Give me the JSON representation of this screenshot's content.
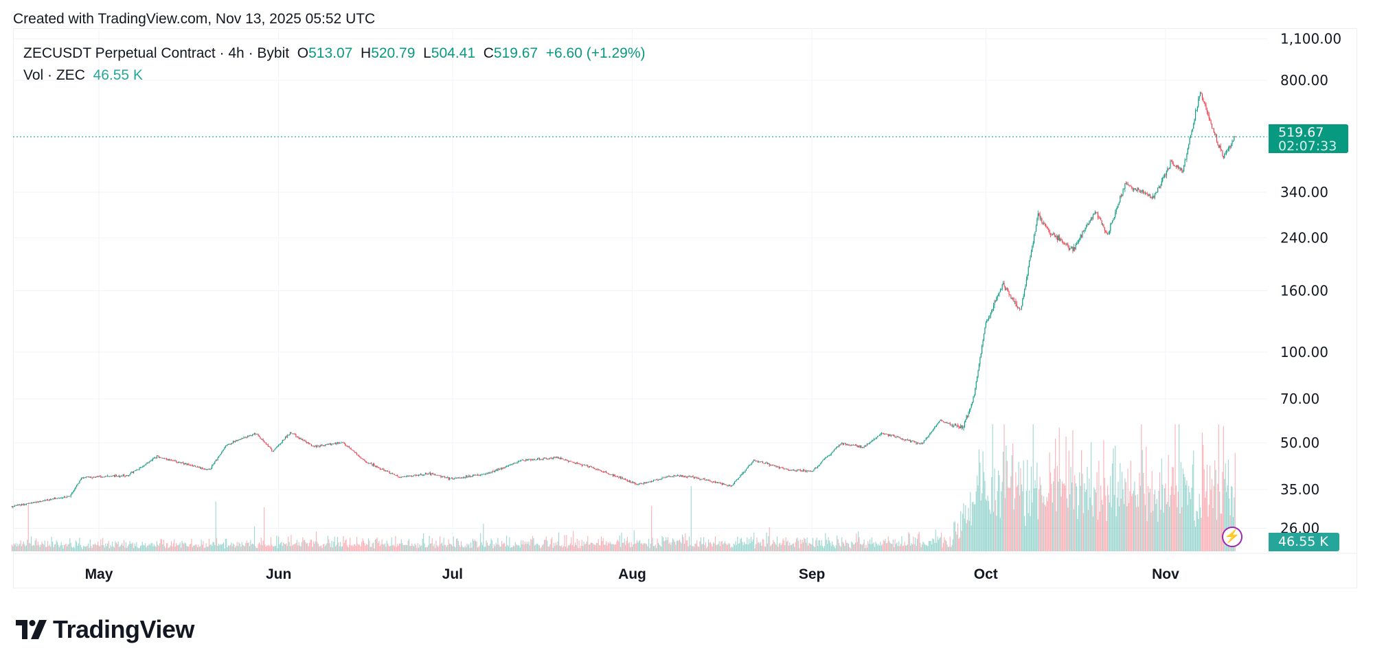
{
  "header": {
    "created": "Created with TradingView.com, Nov 13, 2025 05:52 UTC"
  },
  "legend": {
    "symbol": "ZECUSDT Perpetual Contract · 4h · Bybit",
    "o_label": "O",
    "o": "513.07",
    "h_label": "H",
    "h": "520.79",
    "l_label": "L",
    "l": "504.41",
    "c_label": "C",
    "c": "519.67",
    "change": "+6.60 (+1.29%)",
    "vol_label": "Vol · ZEC",
    "vol": "46.55 K"
  },
  "badges": {
    "last_price": "519.67",
    "countdown": "02:07:33",
    "volume": "46.55 K"
  },
  "logo": {
    "text": "TradingView"
  },
  "colors": {
    "up": "#089981",
    "down": "#f23645",
    "vol_up": "#26a69a",
    "vol_down": "#f7525f",
    "grid": "#f0f3fa",
    "alert": "#9c27b0"
  },
  "chart_data": {
    "type": "candlestick",
    "interval": "4h",
    "y_scale": "log",
    "grid": true,
    "ylim": [
      24,
      1150
    ],
    "y_ticks": [
      {
        "value": 1100,
        "label": "1,100.00"
      },
      {
        "value": 800,
        "label": "800.00"
      },
      {
        "value": 340,
        "label": "340.00"
      },
      {
        "value": 240,
        "label": "240.00"
      },
      {
        "value": 160,
        "label": "160.00"
      },
      {
        "value": 100,
        "label": "100.00"
      },
      {
        "value": 70,
        "label": "70.00"
      },
      {
        "value": 50,
        "label": "50.00"
      },
      {
        "value": 35,
        "label": "35.00"
      },
      {
        "value": 26,
        "label": "26.00"
      }
    ],
    "x_ticks": [
      {
        "date": "2025-05-01",
        "label": "May"
      },
      {
        "date": "2025-06-01",
        "label": "Jun"
      },
      {
        "date": "2025-07-01",
        "label": "Jul"
      },
      {
        "date": "2025-08-01",
        "label": "Aug"
      },
      {
        "date": "2025-09-01",
        "label": "Sep"
      },
      {
        "date": "2025-10-01",
        "label": "Oct"
      },
      {
        "date": "2025-11-01",
        "label": "Nov"
      }
    ],
    "last_price": 519.67,
    "price_path": [
      [
        "2025-04-16",
        30.8
      ],
      [
        "2025-04-26",
        33.2
      ],
      [
        "2025-04-28",
        38.4
      ],
      [
        "2025-05-06",
        38.9
      ],
      [
        "2025-05-11",
        45.0
      ],
      [
        "2025-05-20",
        40.6
      ],
      [
        "2025-05-23",
        49.2
      ],
      [
        "2025-05-28",
        53.8
      ],
      [
        "2025-05-31",
        46.9
      ],
      [
        "2025-06-03",
        54.0
      ],
      [
        "2025-06-07",
        48.7
      ],
      [
        "2025-06-12",
        50.2
      ],
      [
        "2025-06-16",
        43.3
      ],
      [
        "2025-06-22",
        38.4
      ],
      [
        "2025-06-27",
        39.5
      ],
      [
        "2025-07-01",
        37.9
      ],
      [
        "2025-07-07",
        39.5
      ],
      [
        "2025-07-13",
        43.8
      ],
      [
        "2025-07-19",
        44.6
      ],
      [
        "2025-07-25",
        41.4
      ],
      [
        "2025-08-02",
        36.4
      ],
      [
        "2025-08-08",
        38.9
      ],
      [
        "2025-08-12",
        38.4
      ],
      [
        "2025-08-18",
        35.8
      ],
      [
        "2025-08-22",
        43.8
      ],
      [
        "2025-08-28",
        40.6
      ],
      [
        "2025-09-01",
        40.2
      ],
      [
        "2025-09-06",
        49.7
      ],
      [
        "2025-09-10",
        48.4
      ],
      [
        "2025-09-13",
        54.0
      ],
      [
        "2025-09-20",
        49.5
      ],
      [
        "2025-09-23",
        59.4
      ],
      [
        "2025-09-27",
        56.0
      ],
      [
        "2025-09-29",
        72.6
      ],
      [
        "2025-10-01",
        124.9
      ],
      [
        "2025-10-04",
        168.0
      ],
      [
        "2025-10-07",
        137.0
      ],
      [
        "2025-10-10",
        286.0
      ],
      [
        "2025-10-12",
        250.0
      ],
      [
        "2025-10-16",
        219.0
      ],
      [
        "2025-10-20",
        296.0
      ],
      [
        "2025-10-22",
        244.0
      ],
      [
        "2025-10-25",
        362.0
      ],
      [
        "2025-10-30",
        328.0
      ],
      [
        "2025-11-02",
        428.0
      ],
      [
        "2025-11-04",
        402.0
      ],
      [
        "2025-11-07",
        734.0
      ],
      [
        "2025-11-10",
        493.0
      ],
      [
        "2025-11-11",
        449.0
      ],
      [
        "2025-11-13",
        519.67
      ]
    ],
    "volume_profile_k": [
      [
        "2025-04-16",
        3
      ],
      [
        "2025-09-25",
        4
      ],
      [
        "2025-09-30",
        30
      ],
      [
        "2025-11-13",
        28
      ]
    ],
    "current_volume_k": 46.55
  }
}
